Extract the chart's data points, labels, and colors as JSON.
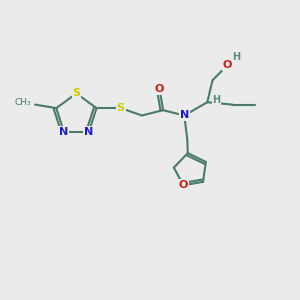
{
  "background_color": "#ebebeb",
  "bond_color": "#4a7a6a",
  "bond_width": 1.5,
  "atom_colors": {
    "N": "#1a1acc",
    "O": "#cc1a1a",
    "S": "#cccc00",
    "H": "#5a8a7a"
  },
  "font_size_atoms": 8,
  "figsize": [
    3.0,
    3.0
  ],
  "dpi": 100
}
